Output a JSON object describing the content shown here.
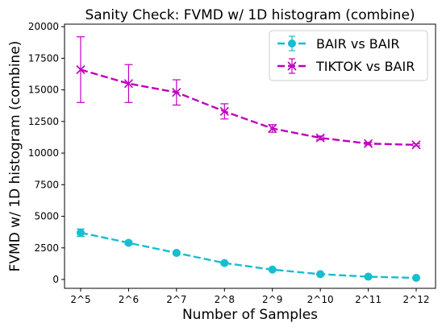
{
  "chart_data": {
    "type": "line",
    "title": "Sanity Check: FVMD w/ 1D histogram (combine)",
    "xlabel": "Number of Samples",
    "ylabel": "FVMD w/ 1D histogram (combine)",
    "categories": [
      "2^5",
      "2^6",
      "2^7",
      "2^8",
      "2^9",
      "2^10",
      "2^11",
      "2^12"
    ],
    "ylim": [
      -700,
      20200
    ],
    "yticks": [
      0,
      2500,
      5000,
      7500,
      10000,
      12500,
      15000,
      17500,
      20000
    ],
    "grid": false,
    "legend_position": "top-right",
    "series": [
      {
        "name": "BAIR vs BAIR",
        "color": "#17becf",
        "marker": "circle",
        "values": [
          3700,
          2900,
          2100,
          1300,
          780,
          420,
          220,
          130
        ],
        "errors": [
          300,
          130,
          110,
          70,
          60,
          40,
          30,
          20
        ]
      },
      {
        "name": "TIKTOK vs BAIR",
        "color": "#bf00bf",
        "marker": "x",
        "values": [
          16600,
          15500,
          14800,
          13300,
          11950,
          11200,
          10750,
          10650
        ],
        "errors": [
          2600,
          1500,
          1000,
          600,
          300,
          150,
          100,
          80
        ]
      }
    ]
  }
}
